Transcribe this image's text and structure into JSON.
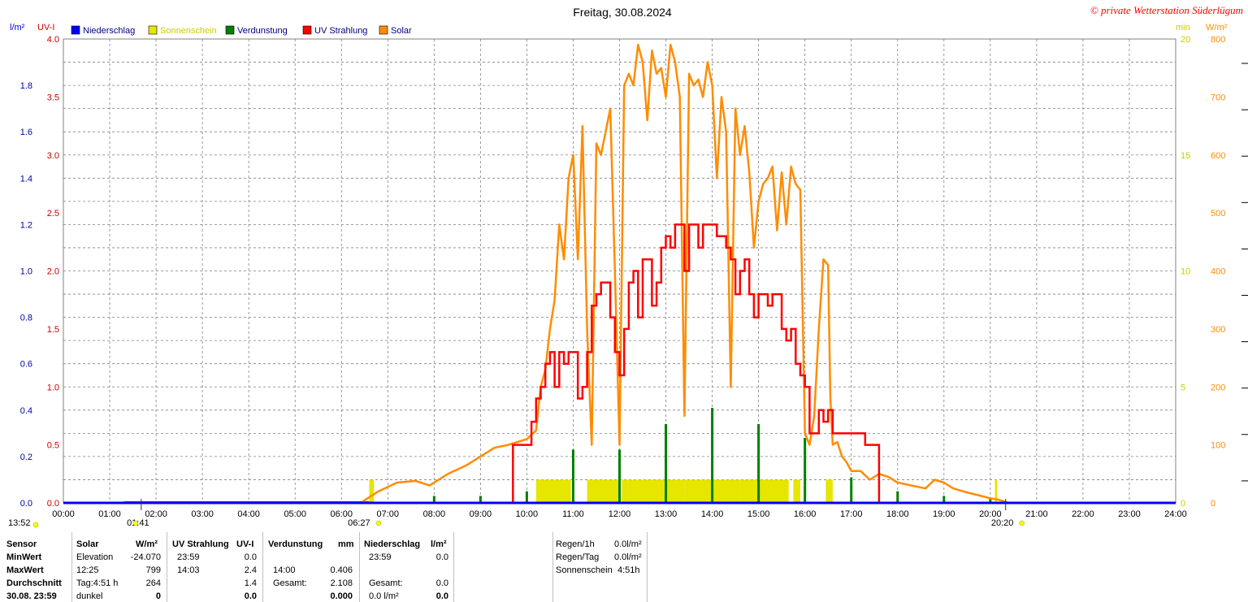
{
  "header": {
    "title": "Freitag, 30.08.2024",
    "copyright": "© private Wetterstation Süderlügum"
  },
  "legend": [
    {
      "label": "Niederschlag",
      "color": "#0000ff"
    },
    {
      "label": "Sonnenschein",
      "color": "#e6e600"
    },
    {
      "label": "Verdunstung",
      "color": "#008000"
    },
    {
      "label": "UV Strahlung",
      "color": "#ff0000"
    },
    {
      "label": "Solar",
      "color": "#ff8c00"
    }
  ],
  "axes": {
    "left1_unit": "l/m²",
    "left2_unit": "UV-I",
    "right1_unit": "min",
    "right2_unit": "W/m²",
    "left1_ticks": [
      "0.0",
      "0.2",
      "0.4",
      "0.6",
      "0.8",
      "1.0",
      "1.2",
      "1.4",
      "1.6",
      "1.8"
    ],
    "left2_ticks": [
      "0.0",
      "0.5",
      "1.0",
      "1.5",
      "2.0",
      "2.5",
      "3.0",
      "3.5",
      "4.0"
    ],
    "right1_ticks": [
      "0",
      "5",
      "10",
      "15",
      "20"
    ],
    "right2_ticks": [
      "0",
      "100",
      "200",
      "300",
      "400",
      "500",
      "600",
      "700",
      "800"
    ],
    "x_ticks": [
      "00:00",
      "01:00",
      "02:00",
      "03:00",
      "04:00",
      "05:00",
      "06:00",
      "07:00",
      "08:00",
      "09:00",
      "10:00",
      "11:00",
      "12:00",
      "13:00",
      "14:00",
      "15:00",
      "16:00",
      "17:00",
      "18:00",
      "19:00",
      "20:00",
      "21:00",
      "22:00",
      "23:00",
      "24:00"
    ],
    "event_labels": {
      "moonrise_text": "13:52",
      "moonset_text": "01:41",
      "sunrise_text": "06:27",
      "sunset_text": "20:20"
    }
  },
  "chart_data": {
    "type": "line",
    "title": "Freitag, 30.08.2024",
    "x_unit": "hours",
    "xlim": [
      0,
      24
    ],
    "ylim_uv": [
      0,
      4
    ],
    "ylim_solar": [
      0,
      800
    ],
    "ylim_rain": [
      0,
      2
    ],
    "ylim_sun_min": [
      0,
      20
    ],
    "grid": true,
    "series": [
      {
        "name": "Solar",
        "color": "#ff8c00",
        "axis": "solar",
        "x": [
          6.45,
          6.8,
          7.2,
          7.6,
          7.9,
          8.3,
          8.7,
          9.0,
          9.3,
          9.6,
          10.0,
          10.2,
          10.3,
          10.4,
          10.5,
          10.6,
          10.7,
          10.8,
          10.9,
          11.0,
          11.1,
          11.2,
          11.3,
          11.4,
          11.5,
          11.6,
          11.7,
          11.8,
          11.9,
          12.0,
          12.1,
          12.2,
          12.3,
          12.4,
          12.5,
          12.6,
          12.7,
          12.8,
          12.9,
          13.0,
          13.1,
          13.2,
          13.3,
          13.4,
          13.5,
          13.6,
          13.7,
          13.8,
          13.9,
          14.0,
          14.1,
          14.2,
          14.3,
          14.4,
          14.5,
          14.6,
          14.7,
          14.8,
          14.9,
          15.0,
          15.1,
          15.2,
          15.3,
          15.4,
          15.5,
          15.6,
          15.7,
          15.8,
          15.9,
          16.0,
          16.1,
          16.2,
          16.3,
          16.4,
          16.5,
          16.55,
          16.6,
          16.7,
          16.8,
          16.9,
          17.0,
          17.2,
          17.4,
          17.6,
          17.8,
          18.0,
          18.3,
          18.6,
          18.8,
          19.0,
          19.2,
          19.5,
          19.8,
          20.0,
          20.2,
          20.4
        ],
        "values": [
          2,
          20,
          35,
          38,
          30,
          50,
          65,
          80,
          95,
          100,
          110,
          125,
          200,
          230,
          300,
          350,
          480,
          420,
          560,
          600,
          420,
          650,
          300,
          100,
          620,
          600,
          640,
          680,
          400,
          100,
          720,
          740,
          720,
          790,
          760,
          660,
          780,
          740,
          750,
          700,
          790,
          760,
          700,
          150,
          740,
          720,
          730,
          700,
          760,
          720,
          560,
          700,
          640,
          200,
          680,
          600,
          650,
          570,
          440,
          520,
          550,
          560,
          580,
          470,
          570,
          480,
          580,
          550,
          540,
          120,
          100,
          150,
          300,
          420,
          410,
          180,
          100,
          105,
          80,
          70,
          55,
          55,
          40,
          50,
          45,
          35,
          30,
          25,
          40,
          35,
          25,
          18,
          12,
          8,
          5,
          0
        ]
      },
      {
        "name": "UV Strahlung",
        "color": "#ff0000",
        "axis": "uv",
        "x": [
          9.62,
          9.7,
          10.0,
          10.1,
          10.2,
          10.3,
          10.4,
          10.5,
          10.6,
          10.7,
          10.8,
          10.9,
          11.0,
          11.1,
          11.2,
          11.3,
          11.4,
          11.5,
          11.6,
          11.7,
          11.8,
          11.9,
          12.0,
          12.1,
          12.2,
          12.3,
          12.4,
          12.5,
          12.6,
          12.7,
          12.8,
          12.9,
          13.0,
          13.1,
          13.2,
          13.3,
          13.4,
          13.5,
          13.6,
          13.7,
          13.8,
          13.9,
          14.0,
          14.1,
          14.2,
          14.3,
          14.4,
          14.5,
          14.6,
          14.7,
          14.8,
          14.9,
          15.0,
          15.1,
          15.2,
          15.3,
          15.4,
          15.5,
          15.6,
          15.7,
          15.8,
          15.9,
          16.0,
          16.1,
          16.2,
          16.3,
          16.4,
          16.5,
          16.6,
          16.7,
          16.8,
          17.0,
          17.2,
          17.3,
          17.4,
          17.55,
          17.6
        ],
        "values": [
          0,
          0.5,
          0.5,
          0.7,
          0.9,
          1.0,
          1.2,
          1.3,
          1.0,
          1.3,
          1.2,
          1.3,
          1.3,
          0.9,
          1.0,
          1.3,
          1.7,
          1.8,
          1.9,
          1.9,
          1.6,
          1.3,
          1.1,
          1.5,
          1.9,
          2.0,
          1.6,
          2.1,
          2.1,
          1.7,
          1.9,
          2.2,
          2.3,
          2.2,
          2.4,
          2.4,
          2.0,
          2.4,
          2.4,
          2.2,
          2.4,
          2.4,
          2.4,
          2.3,
          2.3,
          2.2,
          2.1,
          1.8,
          2.0,
          2.1,
          1.8,
          1.6,
          1.8,
          1.8,
          1.7,
          1.8,
          1.8,
          1.5,
          1.4,
          1.5,
          1.2,
          1.1,
          1.0,
          0.6,
          0.6,
          0.8,
          0.7,
          0.8,
          0.6,
          0.6,
          0.6,
          0.6,
          0.6,
          0.5,
          0.5,
          0.5,
          0
        ]
      },
      {
        "name": "Verdunstung",
        "color": "#008000",
        "axis": "rain",
        "x": [
          8.0,
          9.0,
          10.0,
          11.0,
          12.0,
          13.0,
          14.0,
          15.0,
          16.0,
          17.0,
          18.0,
          19.0,
          20.0
        ],
        "values": [
          0.03,
          0.03,
          0.05,
          0.23,
          0.23,
          0.34,
          0.41,
          0.34,
          0.28,
          0.11,
          0.05,
          0.03,
          0.02
        ]
      },
      {
        "name": "Sonnenschein",
        "color": "#e6e600",
        "axis": "sun_min",
        "intervals": [
          [
            6.6,
            6.7
          ],
          [
            10.2,
            10.3
          ],
          [
            10.3,
            10.95
          ],
          [
            11.3,
            12.0
          ],
          [
            12.05,
            12.2
          ],
          [
            12.2,
            13.4
          ],
          [
            13.4,
            14.6
          ],
          [
            14.6,
            15.65
          ],
          [
            15.75,
            15.9
          ],
          [
            16.45,
            16.6
          ],
          [
            20.1,
            20.15
          ]
        ],
        "level": 1
      }
    ]
  },
  "stats": {
    "headers": {
      "sensor": "Sensor",
      "solar": "Solar",
      "solar_unit": "W/m²",
      "uv": "UV Strahlung",
      "uv_unit": "UV-I",
      "evap": "Verdunstung",
      "evap_unit": "mm",
      "rain": "Niederschlag",
      "rain_unit": "l/m²"
    },
    "rows": [
      {
        "label": "MinWert",
        "solar_a": "Elevation",
        "solar_b": "-24.070",
        "uv_a": "23:59",
        "uv_b": "0.0",
        "evap_a": "",
        "evap_b": "",
        "rain_a": "23:59",
        "rain_b": "0.0"
      },
      {
        "label": "MaxWert",
        "solar_a": "12:25",
        "solar_b": "799",
        "uv_a": "14:03",
        "uv_b": "2.4",
        "evap_a": "14:00",
        "evap_b": "0.406",
        "rain_a": "",
        "rain_b": ""
      },
      {
        "label": "Durchschnitt",
        "solar_a": "Tag:4:51 h",
        "solar_b": "264",
        "uv_a": "",
        "uv_b": "1.4",
        "evap_a": "Gesamt:",
        "evap_b": "2.108",
        "rain_a": "Gesamt:",
        "rain_b": "0.0"
      },
      {
        "label": "30.08. 23:59",
        "solar_a": "dunkel",
        "solar_b": "0",
        "uv_a": "",
        "uv_b": "0.0",
        "evap_a": "",
        "evap_b": "0.000",
        "rain_a": "0.0 l/m²",
        "rain_b": "0.0"
      }
    ],
    "extra": [
      {
        "label": "Regen/1h",
        "value": "0.0l/m²"
      },
      {
        "label": "Regen/Tag",
        "value": "0.0l/m²"
      },
      {
        "label": "Sonnenschein",
        "value": "4:51h"
      }
    ]
  }
}
